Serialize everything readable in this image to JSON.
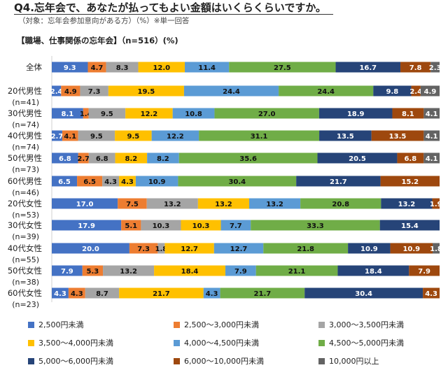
{
  "title": "Q4.忘年会で、あなたが払ってもよい金額はいくらくらいですか。",
  "subtitle": "（対象：忘年会参加意向がある方）（%）※単一回答",
  "section": "【職場、仕事関係の忘年会】（n=516）(%)",
  "chart_data": {
    "type": "bar",
    "orientation": "horizontal-stacked-100",
    "categories": [
      {
        "label": "全体",
        "n": ""
      },
      {
        "label": "20代男性",
        "n": "(n=41)"
      },
      {
        "label": "30代男性",
        "n": "(n=74)"
      },
      {
        "label": "40代男性",
        "n": "(n=74)"
      },
      {
        "label": "50代男性",
        "n": "(n=73)"
      },
      {
        "label": "60代男性",
        "n": "(n=46)"
      },
      {
        "label": "20代女性",
        "n": "(n=53)"
      },
      {
        "label": "30代女性",
        "n": "(n=39)"
      },
      {
        "label": "40代女性",
        "n": "(n=55)"
      },
      {
        "label": "50代女性",
        "n": "(n=38)"
      },
      {
        "label": "60代女性",
        "n": "(n=23)"
      }
    ],
    "series": [
      {
        "name": "2,500円未満",
        "color": "#4472C4",
        "values": [
          9.3,
          2.4,
          8.1,
          2.7,
          6.8,
          6.5,
          17.0,
          17.9,
          20.0,
          7.9,
          4.3
        ]
      },
      {
        "name": "2,500～3,000円未満",
        "color": "#ED7D31",
        "values": [
          4.7,
          4.9,
          1.4,
          4.1,
          2.7,
          6.5,
          7.5,
          5.1,
          7.3,
          5.3,
          4.3
        ]
      },
      {
        "name": "3,000～3,500円未満",
        "color": "#A5A5A5",
        "values": [
          8.3,
          7.3,
          9.5,
          9.5,
          6.8,
          4.3,
          13.2,
          10.3,
          1.8,
          13.2,
          8.7
        ]
      },
      {
        "name": "3,500～4,000円未満",
        "color": "#FFC000",
        "values": [
          12.0,
          19.5,
          12.2,
          9.5,
          8.2,
          4.3,
          13.2,
          10.3,
          12.7,
          18.4,
          21.7
        ]
      },
      {
        "name": "4,000～4,500円未満",
        "color": "#5B9BD5",
        "values": [
          11.4,
          24.4,
          10.8,
          12.2,
          8.2,
          10.9,
          13.2,
          7.7,
          12.7,
          7.9,
          4.3
        ]
      },
      {
        "name": "4,500～5,000円未満",
        "color": "#70AD47",
        "values": [
          27.5,
          24.4,
          27.0,
          31.1,
          35.6,
          30.4,
          20.8,
          33.3,
          21.8,
          21.1,
          21.7
        ]
      },
      {
        "name": "5,000～6,000円未満",
        "color": "#264478",
        "values": [
          16.7,
          9.8,
          18.9,
          13.5,
          20.5,
          21.7,
          13.2,
          15.4,
          10.9,
          18.4,
          30.4
        ]
      },
      {
        "name": "6,000～10,000円未満",
        "color": "#9E480E",
        "values": [
          7.8,
          2.4,
          8.1,
          13.5,
          6.8,
          15.2,
          1.9,
          0,
          10.9,
          7.9,
          4.3
        ]
      },
      {
        "name": "10,000円以上",
        "color": "#636363",
        "values": [
          2.3,
          4.9,
          4.1,
          4.1,
          4.1,
          0,
          0,
          0,
          1.8,
          0,
          0
        ]
      }
    ],
    "xlim": [
      0,
      100
    ],
    "legend_position": "bottom",
    "data_labels": true
  }
}
